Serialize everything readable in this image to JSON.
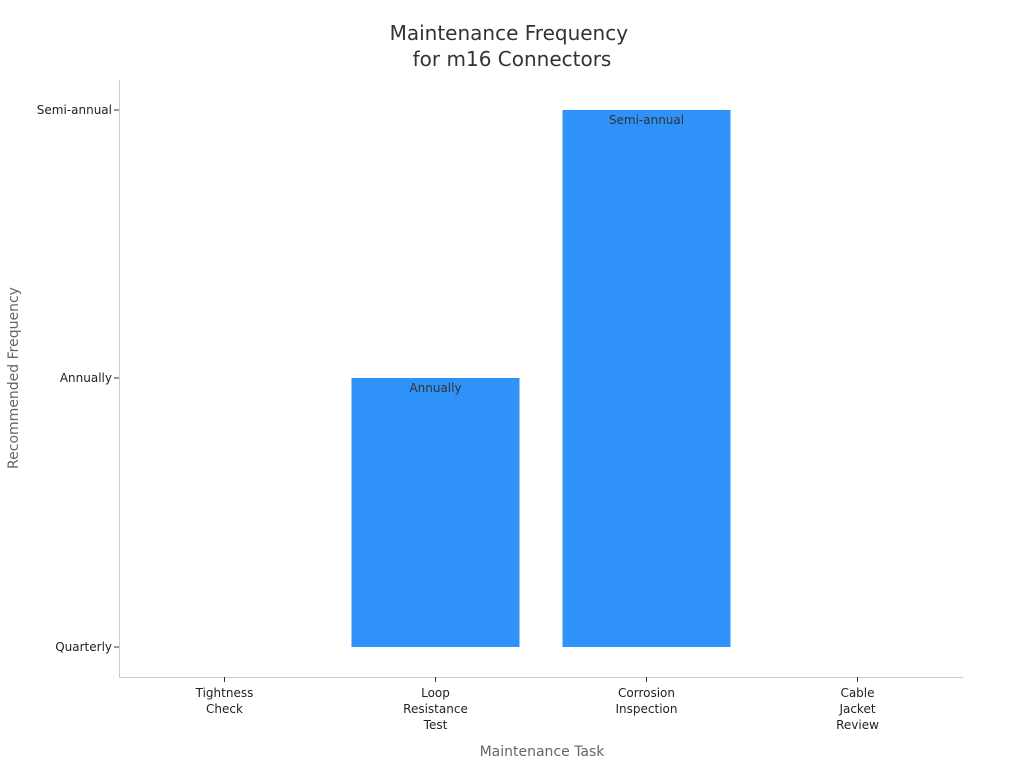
{
  "chart_data": {
    "type": "bar",
    "title": [
      "Maintenance Frequency",
      "for m16 Connectors"
    ],
    "xlabel": "Maintenance Task",
    "ylabel": "Recommended Frequency",
    "categories": [
      [
        "Tightness",
        "Check"
      ],
      [
        "Loop",
        "Resistance",
        "Test"
      ],
      [
        "Corrosion",
        "Inspection"
      ],
      [
        "Cable",
        "Jacket",
        "Review"
      ]
    ],
    "y_levels": [
      "Quarterly",
      "Annually",
      "Semi-annual"
    ],
    "values": [
      "Quarterly",
      "Annually",
      "Semi-annual",
      "Quarterly"
    ],
    "bar_labels": [
      "",
      "Annually",
      "Semi-annual",
      ""
    ],
    "bar_color": "#2f92f9",
    "grid": false,
    "legend": "none"
  }
}
